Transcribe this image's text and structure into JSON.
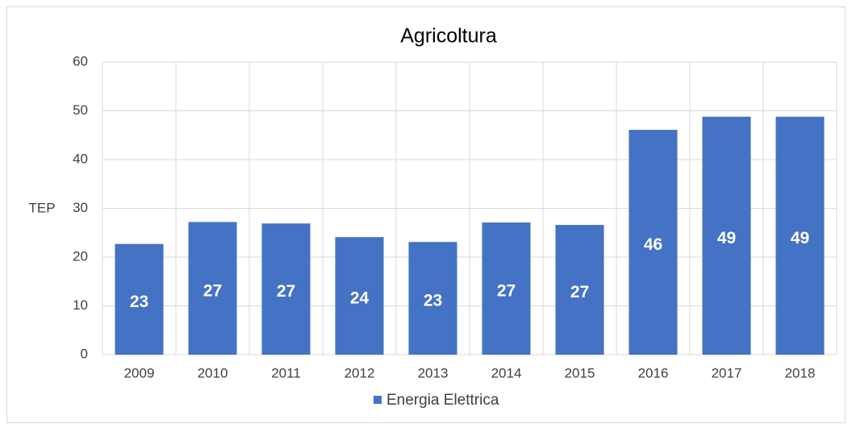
{
  "chart_data": {
    "type": "bar",
    "title": "Agricoltura",
    "y_label": "TEP",
    "categories": [
      "2009",
      "2010",
      "2011",
      "2012",
      "2013",
      "2014",
      "2015",
      "2016",
      "2017",
      "2018"
    ],
    "series": [
      {
        "name": "Energia Elettrica",
        "color": "#4472c4",
        "values": [
          22.7,
          27.2,
          26.9,
          24.1,
          23.1,
          27.1,
          26.6,
          46.1,
          48.8,
          48.8
        ],
        "value_labels": [
          "23",
          "27",
          "27",
          "24",
          "23",
          "27",
          "27",
          "46",
          "49",
          "49"
        ]
      }
    ],
    "ylim": [
      0,
      60
    ],
    "yticks": [
      0,
      10,
      20,
      30,
      40,
      50,
      60
    ],
    "grid": true,
    "legend": "bottom"
  }
}
